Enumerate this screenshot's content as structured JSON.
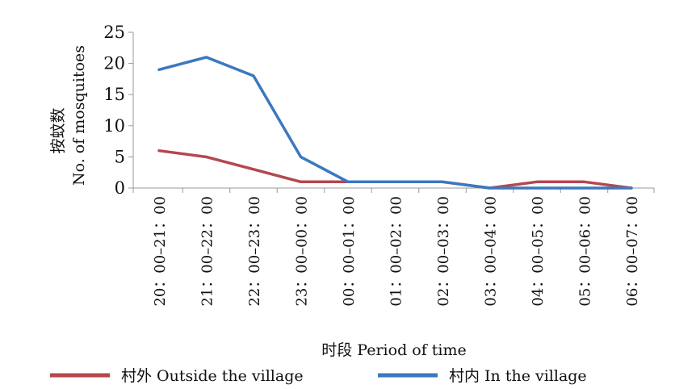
{
  "chart_data": {
    "type": "line",
    "title": "",
    "xlabel": "时段 Period of time",
    "ylabel_cn": "按蚊数",
    "ylabel_en": "No. of mosquitoes",
    "categories": [
      "20：00–21：00",
      "21：00–22：00",
      "22：00–23：00",
      "23：00–00：00",
      "00：00–01：00",
      "01：00–02：00",
      "02：00–03：00",
      "03：00–04：00",
      "04：00–05：00",
      "05：00–06：00",
      "06：00–07：00"
    ],
    "yticks": [
      0,
      5,
      10,
      15,
      20,
      25
    ],
    "ylim": [
      0,
      25
    ],
    "grid": false,
    "legend_position": "bottom",
    "series": [
      {
        "name": "村外 Outside the village",
        "color": "#b5474e",
        "values": [
          6,
          5,
          3,
          1,
          1,
          1,
          1,
          0,
          1,
          1,
          0
        ]
      },
      {
        "name": "村内 In the village",
        "color": "#3b78bf",
        "values": [
          19,
          21,
          18,
          5,
          1,
          1,
          1,
          0,
          0,
          0,
          0
        ]
      }
    ]
  }
}
